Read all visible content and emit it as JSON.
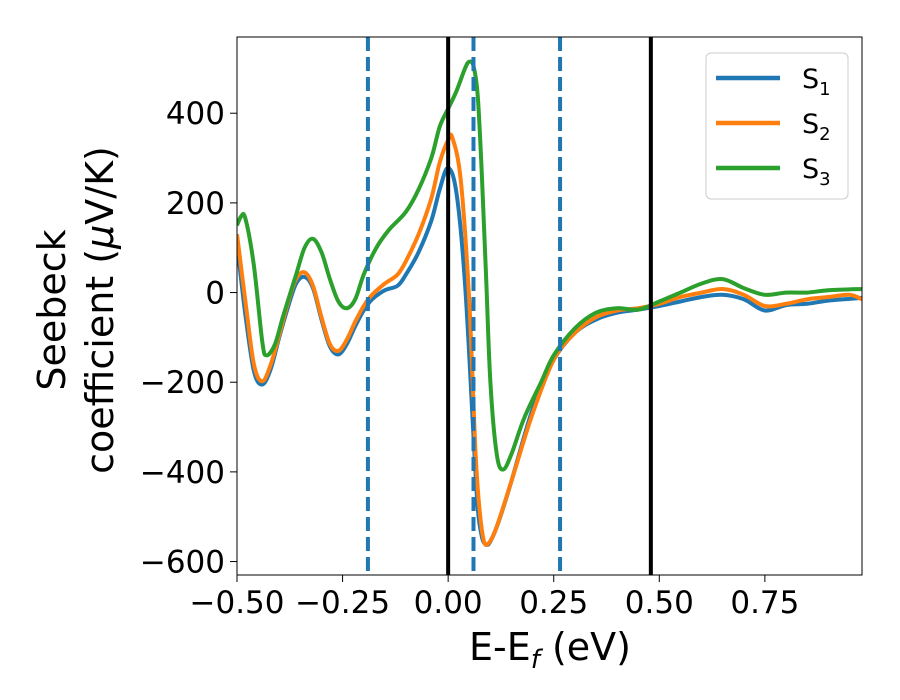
{
  "chart_data": {
    "type": "line",
    "title": "",
    "xlabel": "E-E",
    "xlabel_sub": "f",
    "xlabel_unit": " (eV)",
    "ylabel_line1": "Seebeck",
    "ylabel_line2_a": "coefficient  (",
    "ylabel_mu": "μ",
    "ylabel_line2_b": "V/K)",
    "xlim": [
      -0.5,
      0.98
    ],
    "ylim": [
      -630,
      570
    ],
    "xticks": [
      -0.5,
      -0.25,
      0.0,
      0.25,
      0.5,
      0.75
    ],
    "xtick_labels": [
      "−0.50",
      "−0.25",
      "0.00",
      "0.25",
      "0.50",
      "0.75"
    ],
    "yticks": [
      -600,
      -400,
      -200,
      0,
      200,
      400
    ],
    "ytick_labels": [
      "−600",
      "−400",
      "−200",
      "0",
      "200",
      "400"
    ],
    "grid": false,
    "legend_position": "top-right",
    "vlines_solid": [
      0.0,
      0.48
    ],
    "vlines_dashed": [
      -0.19,
      0.06,
      0.265
    ],
    "series": [
      {
        "name": "S",
        "name_sub": "1",
        "color": "#1f77b4",
        "points": [
          [
            -0.5,
            110
          ],
          [
            -0.48,
            -50
          ],
          [
            -0.46,
            -175
          ],
          [
            -0.44,
            -205
          ],
          [
            -0.42,
            -170
          ],
          [
            -0.4,
            -100
          ],
          [
            -0.38,
            -35
          ],
          [
            -0.36,
            20
          ],
          [
            -0.34,
            35
          ],
          [
            -0.32,
            10
          ],
          [
            -0.3,
            -60
          ],
          [
            -0.28,
            -120
          ],
          [
            -0.26,
            -138
          ],
          [
            -0.24,
            -115
          ],
          [
            -0.22,
            -75
          ],
          [
            -0.2,
            -40
          ],
          [
            -0.18,
            -15
          ],
          [
            -0.15,
            5
          ],
          [
            -0.12,
            15
          ],
          [
            -0.1,
            40
          ],
          [
            -0.07,
            90
          ],
          [
            -0.04,
            160
          ],
          [
            -0.02,
            230
          ],
          [
            0.0,
            278
          ],
          [
            0.02,
            220
          ],
          [
            0.04,
            20
          ],
          [
            0.06,
            -320
          ],
          [
            0.07,
            -480
          ],
          [
            0.08,
            -545
          ],
          [
            0.09,
            -562
          ],
          [
            0.1,
            -555
          ],
          [
            0.12,
            -510
          ],
          [
            0.15,
            -420
          ],
          [
            0.2,
            -260
          ],
          [
            0.25,
            -150
          ],
          [
            0.3,
            -90
          ],
          [
            0.35,
            -60
          ],
          [
            0.4,
            -45
          ],
          [
            0.45,
            -38
          ],
          [
            0.5,
            -30
          ],
          [
            0.55,
            -20
          ],
          [
            0.6,
            -10
          ],
          [
            0.65,
            -5
          ],
          [
            0.7,
            -15
          ],
          [
            0.75,
            -40
          ],
          [
            0.8,
            -28
          ],
          [
            0.85,
            -25
          ],
          [
            0.9,
            -18
          ],
          [
            0.98,
            -12
          ]
        ]
      },
      {
        "name": "S",
        "name_sub": "2",
        "color": "#ff7f0e",
        "points": [
          [
            -0.5,
            130
          ],
          [
            -0.48,
            -20
          ],
          [
            -0.46,
            -160
          ],
          [
            -0.44,
            -198
          ],
          [
            -0.42,
            -160
          ],
          [
            -0.4,
            -95
          ],
          [
            -0.38,
            -25
          ],
          [
            -0.36,
            30
          ],
          [
            -0.34,
            45
          ],
          [
            -0.32,
            15
          ],
          [
            -0.3,
            -55
          ],
          [
            -0.28,
            -115
          ],
          [
            -0.26,
            -130
          ],
          [
            -0.24,
            -105
          ],
          [
            -0.22,
            -65
          ],
          [
            -0.2,
            -30
          ],
          [
            -0.18,
            -5
          ],
          [
            -0.15,
            20
          ],
          [
            -0.12,
            40
          ],
          [
            -0.1,
            70
          ],
          [
            -0.07,
            130
          ],
          [
            -0.04,
            210
          ],
          [
            -0.02,
            290
          ],
          [
            0.0,
            340
          ],
          [
            0.01,
            345
          ],
          [
            0.03,
            250
          ],
          [
            0.05,
            -20
          ],
          [
            0.065,
            -360
          ],
          [
            0.075,
            -490
          ],
          [
            0.085,
            -555
          ],
          [
            0.095,
            -560
          ],
          [
            0.11,
            -535
          ],
          [
            0.13,
            -480
          ],
          [
            0.16,
            -390
          ],
          [
            0.2,
            -270
          ],
          [
            0.25,
            -150
          ],
          [
            0.3,
            -90
          ],
          [
            0.35,
            -55
          ],
          [
            0.4,
            -40
          ],
          [
            0.45,
            -35
          ],
          [
            0.5,
            -25
          ],
          [
            0.55,
            -10
          ],
          [
            0.6,
            0
          ],
          [
            0.65,
            8
          ],
          [
            0.7,
            -5
          ],
          [
            0.75,
            -30
          ],
          [
            0.8,
            -25
          ],
          [
            0.85,
            -15
          ],
          [
            0.9,
            -10
          ],
          [
            0.95,
            -5
          ],
          [
            0.98,
            -15
          ]
        ]
      },
      {
        "name": "S",
        "name_sub": "3",
        "color": "#2ca02c",
        "points": [
          [
            -0.5,
            150
          ],
          [
            -0.49,
            170
          ],
          [
            -0.48,
            165
          ],
          [
            -0.46,
            60
          ],
          [
            -0.44,
            -110
          ],
          [
            -0.43,
            -140
          ],
          [
            -0.41,
            -115
          ],
          [
            -0.39,
            -50
          ],
          [
            -0.36,
            40
          ],
          [
            -0.34,
            100
          ],
          [
            -0.32,
            120
          ],
          [
            -0.3,
            90
          ],
          [
            -0.28,
            30
          ],
          [
            -0.26,
            -20
          ],
          [
            -0.24,
            -35
          ],
          [
            -0.22,
            -15
          ],
          [
            -0.2,
            40
          ],
          [
            -0.17,
            100
          ],
          [
            -0.14,
            140
          ],
          [
            -0.1,
            180
          ],
          [
            -0.07,
            230
          ],
          [
            -0.04,
            300
          ],
          [
            -0.02,
            370
          ],
          [
            0.0,
            410
          ],
          [
            0.02,
            450
          ],
          [
            0.04,
            500
          ],
          [
            0.05,
            515
          ],
          [
            0.06,
            505
          ],
          [
            0.07,
            440
          ],
          [
            0.08,
            260
          ],
          [
            0.09,
            30
          ],
          [
            0.1,
            -200
          ],
          [
            0.115,
            -360
          ],
          [
            0.13,
            -395
          ],
          [
            0.15,
            -360
          ],
          [
            0.18,
            -280
          ],
          [
            0.22,
            -200
          ],
          [
            0.25,
            -140
          ],
          [
            0.3,
            -80
          ],
          [
            0.35,
            -45
          ],
          [
            0.4,
            -35
          ],
          [
            0.45,
            -38
          ],
          [
            0.5,
            -20
          ],
          [
            0.55,
            0
          ],
          [
            0.6,
            20
          ],
          [
            0.65,
            30
          ],
          [
            0.7,
            10
          ],
          [
            0.75,
            -5
          ],
          [
            0.8,
            0
          ],
          [
            0.85,
            0
          ],
          [
            0.9,
            5
          ],
          [
            0.98,
            8
          ]
        ]
      }
    ]
  }
}
